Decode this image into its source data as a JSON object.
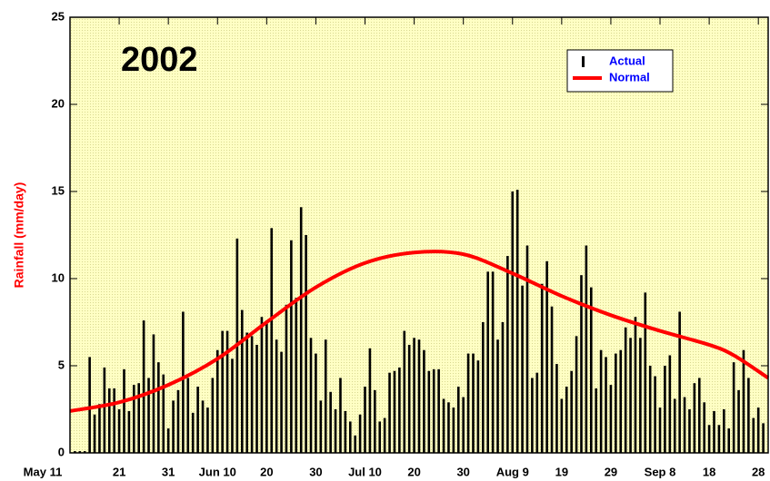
{
  "chart_data": {
    "type": "bar",
    "title": "2002",
    "ylabel": "Rainfall (mm/day)",
    "xlim": [
      0,
      142
    ],
    "ylim": [
      0,
      25
    ],
    "xticks": [
      {
        "value": 0,
        "label": "May 11"
      },
      {
        "value": 10,
        "label": "21"
      },
      {
        "value": 20,
        "label": "31"
      },
      {
        "value": 30,
        "label": "Jun 10"
      },
      {
        "value": 40,
        "label": "20"
      },
      {
        "value": 50,
        "label": "30"
      },
      {
        "value": 60,
        "label": "Jul 10"
      },
      {
        "value": 70,
        "label": "20"
      },
      {
        "value": 80,
        "label": "30"
      },
      {
        "value": 90,
        "label": "Aug 9"
      },
      {
        "value": 100,
        "label": "19"
      },
      {
        "value": 110,
        "label": "29"
      },
      {
        "value": 120,
        "label": "Sep 8"
      },
      {
        "value": 130,
        "label": "18"
      },
      {
        "value": 140,
        "label": "28"
      }
    ],
    "yticks": [
      0,
      5,
      10,
      15,
      20,
      25
    ],
    "legend": "upper right",
    "background": "#ffffc4",
    "series": [
      {
        "name": "Actual",
        "color": "#000000",
        "type": "bar",
        "x": [
          1,
          2,
          3,
          4,
          5,
          6,
          7,
          8,
          9,
          10,
          11,
          12,
          13,
          14,
          15,
          16,
          17,
          18,
          19,
          20,
          21,
          22,
          23,
          24,
          25,
          26,
          27,
          28,
          29,
          30,
          31,
          32,
          33,
          34,
          35,
          36,
          37,
          38,
          39,
          40,
          41,
          42,
          43,
          44,
          45,
          46,
          47,
          48,
          49,
          50,
          51,
          52,
          53,
          54,
          55,
          56,
          57,
          58,
          59,
          60,
          61,
          62,
          63,
          64,
          65,
          66,
          67,
          68,
          69,
          70,
          71,
          72,
          73,
          74,
          75,
          76,
          77,
          78,
          79,
          80,
          81,
          82,
          83,
          84,
          85,
          86,
          87,
          88,
          89,
          90,
          91,
          92,
          93,
          94,
          95,
          96,
          97,
          98,
          99,
          100,
          101,
          102,
          103,
          104,
          105,
          106,
          107,
          108,
          109,
          110,
          111,
          112,
          113,
          114,
          115,
          116,
          117,
          118,
          119,
          120,
          121,
          122,
          123,
          124,
          125,
          126,
          127,
          128,
          129,
          130,
          131,
          132,
          133,
          134,
          135,
          136,
          137,
          138,
          139,
          140,
          141
        ],
        "values": [
          0.1,
          0.1,
          0.1,
          5.5,
          2.2,
          2.8,
          4.9,
          3.7,
          3.7,
          2.5,
          4.8,
          2.4,
          3.9,
          4.0,
          7.6,
          4.3,
          6.8,
          5.2,
          4.5,
          1.4,
          3.0,
          3.6,
          8.1,
          4.3,
          2.3,
          3.8,
          3.0,
          2.6,
          4.3,
          5.9,
          7.0,
          7.0,
          5.4,
          12.3,
          8.2,
          6.9,
          6.7,
          6.2,
          7.8,
          7.6,
          12.9,
          6.5,
          5.8,
          8.5,
          12.2,
          8.9,
          14.1,
          12.5,
          6.6,
          5.7,
          3.0,
          6.5,
          3.5,
          2.5,
          4.3,
          2.4,
          1.8,
          1.0,
          2.2,
          3.8,
          6.0,
          3.6,
          1.8,
          2.0,
          4.6,
          4.7,
          4.9,
          7.0,
          6.2,
          6.6,
          6.5,
          5.9,
          4.7,
          4.8,
          4.8,
          3.1,
          2.9,
          2.6,
          3.8,
          3.2,
          5.7,
          5.7,
          5.3,
          7.5,
          10.4,
          10.4,
          6.5,
          7.5,
          11.3,
          15.0,
          15.1,
          9.6,
          11.9,
          4.3,
          4.6,
          9.7,
          11.0,
          8.4,
          5.1,
          3.1,
          3.8,
          4.7,
          6.7,
          10.2,
          11.9,
          9.5,
          3.7,
          5.9,
          5.5,
          3.9,
          5.7,
          5.9,
          7.2,
          6.6,
          7.8,
          6.6,
          9.2,
          5.0,
          4.4,
          2.6,
          5.0,
          5.6,
          3.1,
          8.1,
          3.2,
          2.5,
          4.0,
          4.3,
          2.9,
          1.6,
          2.4,
          1.6,
          2.5,
          1.4,
          5.2,
          3.6,
          5.9,
          4.3,
          2.0,
          2.6,
          1.7
        ]
      },
      {
        "name": "Normal",
        "color": "#ff0000",
        "type": "line",
        "x": [
          0,
          10,
          20,
          30,
          40,
          50,
          60,
          70,
          80,
          90,
          100,
          110,
          120,
          130,
          135,
          142
        ],
        "values": [
          2.4,
          2.9,
          3.9,
          5.4,
          7.5,
          9.5,
          10.9,
          11.5,
          11.4,
          10.3,
          9.0,
          7.9,
          7.0,
          6.2,
          5.6,
          4.3
        ]
      }
    ]
  }
}
